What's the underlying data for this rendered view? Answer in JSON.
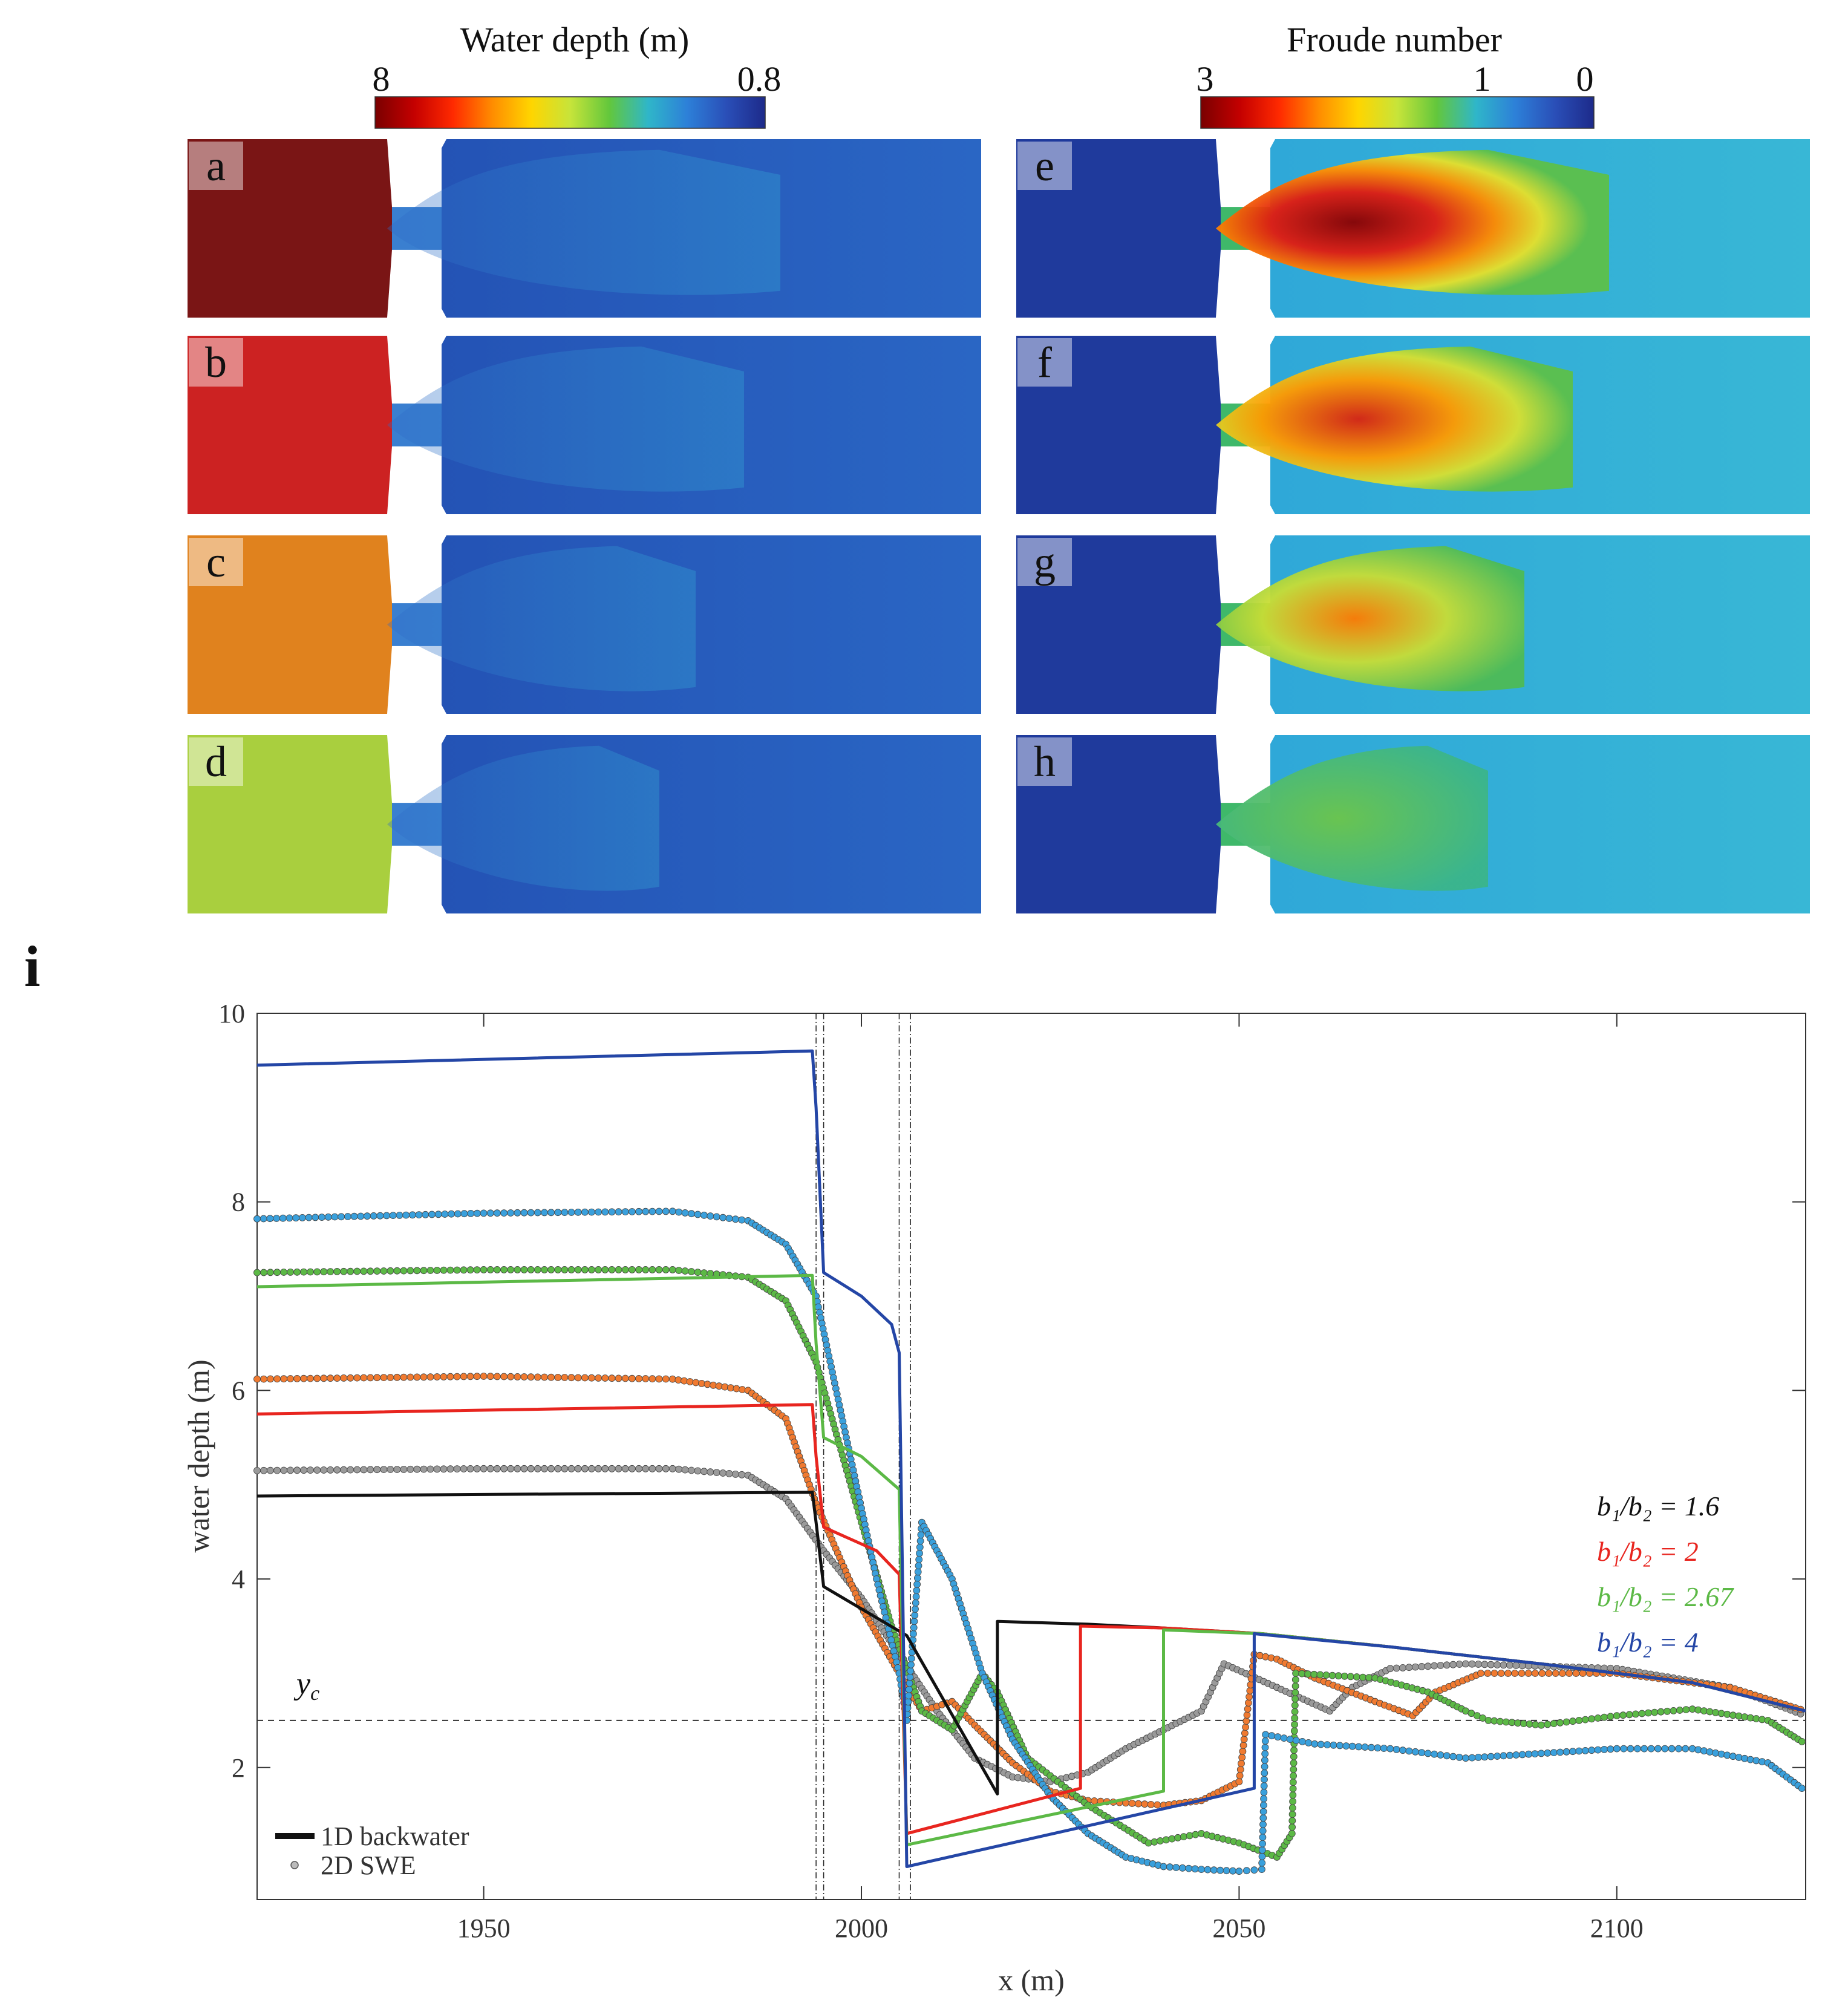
{
  "colorbars": {
    "depth": {
      "title": "Water depth (m)",
      "max_label": "8",
      "min_label": "0.8",
      "colors": [
        "#7a0000",
        "#c40000",
        "#ff2a00",
        "#ff8c00",
        "#ffd500",
        "#c7e43a",
        "#63c73c",
        "#2fb6c9",
        "#2d80d8",
        "#2a4fb8",
        "#1d2a8a"
      ]
    },
    "froude": {
      "title": "Froude number",
      "max_label": "3",
      "mid_label": "1",
      "min_label": "0",
      "colors": [
        "#7a0000",
        "#c40000",
        "#ff2a00",
        "#ff8c00",
        "#ffd500",
        "#c7e43a",
        "#63c73c",
        "#2fb6c9",
        "#2d80d8",
        "#2a4fb8",
        "#1d2a8a"
      ]
    }
  },
  "panels": {
    "depth": [
      {
        "letter": "a",
        "upstream_color": "#7a1515"
      },
      {
        "letter": "b",
        "upstream_color": "#cc2222"
      },
      {
        "letter": "c",
        "upstream_color": "#e0821e"
      },
      {
        "letter": "d",
        "upstream_color": "#a9cf3e"
      }
    ],
    "froude": [
      {
        "letter": "e"
      },
      {
        "letter": "f"
      },
      {
        "letter": "g"
      },
      {
        "letter": "h"
      }
    ]
  },
  "chart_data": {
    "type": "line",
    "panel_label": "i",
    "xlabel": "x (m)",
    "ylabel": "water depth (m)",
    "xlim": [
      1920,
      2125
    ],
    "ylim": [
      0.6,
      10
    ],
    "xticks": [
      1950,
      2000,
      2050,
      2100
    ],
    "yticks": [
      2,
      4,
      6,
      8,
      10
    ],
    "critical_depth": {
      "label": "y",
      "subscript": "c",
      "value": 2.5
    },
    "contraction_lines_x": [
      1994,
      1995,
      2005,
      2006.5
    ],
    "legend_styles": [
      {
        "label": "1D backwater",
        "style": "line"
      },
      {
        "label": "2D SWE",
        "style": "marker"
      }
    ],
    "series_legend": [
      {
        "label": "b₁/b₂ = 1.6",
        "color": "#111111"
      },
      {
        "label": "b₁/b₂ = 2",
        "color": "#e8251f"
      },
      {
        "label": "b₁/b₂ = 2.67",
        "color": "#5cb946"
      },
      {
        "label": "b₁/b₂ = 4",
        "color": "#2446a6"
      }
    ],
    "series": [
      {
        "name": "b1/b2 = 1.6 (1D backwater)",
        "kind": "1D",
        "color": "#111111",
        "x": [
          1920,
          1993.5,
          1994,
          1995,
          2006,
          2018,
          2018,
          2030,
          2040,
          2053,
          2070,
          2090,
          2110,
          2125
        ],
        "y": [
          4.88,
          4.92,
          4.6,
          3.92,
          3.4,
          1.72,
          3.55,
          3.52,
          3.48,
          3.42,
          3.28,
          3.1,
          2.9,
          2.6
        ]
      },
      {
        "name": "b1/b2 = 2 (1D backwater)",
        "kind": "1D",
        "color": "#e8251f",
        "x": [
          1920,
          1993.5,
          1994,
          1995,
          2002,
          2005,
          2006,
          2029,
          2029,
          2040,
          2053,
          2070,
          2090,
          2110,
          2125
        ],
        "y": [
          5.75,
          5.85,
          5.3,
          4.55,
          4.3,
          4.05,
          1.3,
          1.78,
          3.5,
          3.48,
          3.42,
          3.28,
          3.1,
          2.9,
          2.6
        ]
      },
      {
        "name": "b1/b2 = 2.67 (1D backwater)",
        "kind": "1D",
        "color": "#5cb946",
        "x": [
          1920,
          1993.5,
          1994,
          1995,
          2000,
          2005,
          2006,
          2040,
          2040,
          2053,
          2070,
          2090,
          2110,
          2125
        ],
        "y": [
          7.1,
          7.22,
          6.5,
          5.5,
          5.3,
          4.95,
          1.18,
          1.75,
          3.46,
          3.42,
          3.28,
          3.1,
          2.9,
          2.6
        ]
      },
      {
        "name": "b1/b2 = 4 (1D backwater)",
        "kind": "1D",
        "color": "#2446a6",
        "x": [
          1920,
          1993.5,
          1994,
          1995,
          2000,
          2004,
          2005,
          2006,
          2052,
          2052,
          2070,
          2090,
          2110,
          2125
        ],
        "y": [
          9.45,
          9.6,
          9.0,
          7.25,
          7.0,
          6.7,
          6.4,
          0.95,
          1.78,
          3.42,
          3.28,
          3.1,
          2.9,
          2.6
        ]
      },
      {
        "name": "b1/b2 = 1.6 (2D SWE)",
        "kind": "2D",
        "color": "#9a9a9a",
        "x": [
          1920,
          1950,
          1975,
          1985,
          1990,
          1995,
          2000,
          2005,
          2010,
          2015,
          2020,
          2025,
          2030,
          2035,
          2040,
          2045,
          2048,
          2055,
          2062,
          2065,
          2070,
          2080,
          2100,
          2115,
          2125
        ],
        "y": [
          5.15,
          5.17,
          5.17,
          5.1,
          4.85,
          4.3,
          3.8,
          3.2,
          2.6,
          2.1,
          1.9,
          1.85,
          1.95,
          2.2,
          2.4,
          2.6,
          3.1,
          2.85,
          2.6,
          2.85,
          3.05,
          3.1,
          3.05,
          2.85,
          2.55
        ]
      },
      {
        "name": "b1/b2 = 2 (2D SWE)",
        "kind": "2D",
        "color": "#f07a30",
        "x": [
          1920,
          1950,
          1975,
          1985,
          1990,
          1994,
          2000,
          2005,
          2008,
          2012,
          2015,
          2020,
          2025,
          2030,
          2040,
          2045,
          2050,
          2052,
          2055,
          2060,
          2068,
          2073,
          2076,
          2082,
          2100,
          2115,
          2125
        ],
        "y": [
          6.12,
          6.15,
          6.12,
          6.0,
          5.7,
          4.8,
          3.7,
          3.0,
          2.6,
          2.7,
          2.45,
          2.05,
          1.75,
          1.65,
          1.6,
          1.65,
          1.85,
          3.2,
          3.15,
          2.95,
          2.7,
          2.55,
          2.8,
          3.0,
          3.0,
          2.85,
          2.6
        ]
      },
      {
        "name": "b1/b2 = 2.67 (2D SWE)",
        "kind": "2D",
        "color": "#5cb946",
        "x": [
          1920,
          1950,
          1975,
          1985,
          1990,
          1994,
          2000,
          2004,
          2008,
          2012,
          2016,
          2018,
          2022,
          2030,
          2038,
          2045,
          2050,
          2055,
          2057,
          2057.5,
          2068,
          2075,
          2080,
          2083,
          2090,
          2100,
          2110,
          2120,
          2125
        ],
        "y": [
          7.25,
          7.28,
          7.28,
          7.2,
          6.95,
          6.3,
          4.6,
          3.5,
          2.6,
          2.4,
          3.0,
          2.8,
          2.1,
          1.6,
          1.2,
          1.3,
          1.2,
          1.05,
          1.3,
          3.0,
          2.95,
          2.8,
          2.6,
          2.5,
          2.45,
          2.55,
          2.62,
          2.5,
          2.25
        ]
      },
      {
        "name": "b1/b2 = 4 (2D SWE)",
        "kind": "2D",
        "color": "#3aa0dc",
        "x": [
          1920,
          1950,
          1975,
          1985,
          1990,
          1994,
          1998,
          2002,
          2005,
          2006,
          2008,
          2012,
          2016,
          2020,
          2025,
          2030,
          2035,
          2040,
          2045,
          2050,
          2053,
          2053.5,
          2060,
          2070,
          2080,
          2090,
          2100,
          2110,
          2120,
          2125
        ],
        "y": [
          7.82,
          7.88,
          7.9,
          7.8,
          7.55,
          7.0,
          5.5,
          4.0,
          3.0,
          2.5,
          4.6,
          4.0,
          3.0,
          2.3,
          1.7,
          1.3,
          1.05,
          0.95,
          0.92,
          0.9,
          0.92,
          2.35,
          2.25,
          2.2,
          2.1,
          2.15,
          2.2,
          2.2,
          2.05,
          1.75
        ]
      }
    ]
  }
}
